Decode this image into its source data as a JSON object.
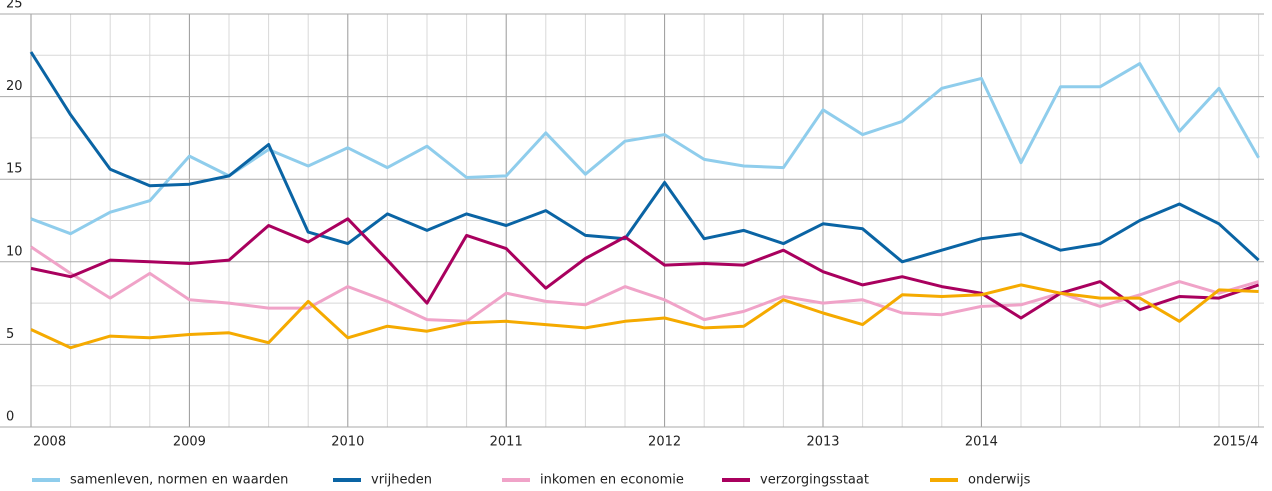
{
  "chart_data": {
    "type": "line",
    "categories": [
      "2008",
      null,
      null,
      null,
      "2009",
      null,
      null,
      null,
      "2010",
      null,
      null,
      null,
      "2011",
      null,
      null,
      null,
      "2012",
      null,
      null,
      null,
      "2013",
      null,
      null,
      null,
      "2014",
      null,
      null,
      null,
      null,
      null,
      null,
      "2015/4"
    ],
    "ylim": [
      0,
      25
    ],
    "yticks": [
      0,
      5,
      10,
      15,
      20,
      25
    ],
    "minor_grid": [
      2.5,
      7.5,
      12.5,
      17.5,
      22.5
    ],
    "grid": true,
    "legend": "bottom",
    "series": [
      {
        "name": "samenleven, normen en waarden",
        "color": "#8fcdec",
        "values": [
          12.6,
          11.7,
          13.0,
          13.7,
          16.4,
          15.2,
          16.8,
          15.8,
          16.9,
          15.7,
          17.0,
          15.1,
          15.2,
          17.8,
          15.3,
          17.3,
          17.7,
          16.2,
          15.8,
          15.7,
          19.2,
          17.7,
          18.5,
          20.5,
          21.1,
          16.0,
          20.6,
          20.6,
          22.0,
          17.9,
          20.5,
          16.3
        ]
      },
      {
        "name": "vrijheden",
        "color": "#0a64a4",
        "values": [
          22.7,
          18.9,
          15.6,
          14.6,
          14.7,
          15.2,
          17.1,
          11.8,
          11.1,
          12.9,
          11.9,
          12.9,
          12.2,
          13.1,
          11.6,
          11.4,
          14.8,
          11.4,
          11.9,
          11.1,
          12.3,
          12.0,
          10.0,
          10.7,
          11.4,
          11.7,
          10.7,
          11.1,
          12.5,
          13.5,
          12.3,
          10.1
        ]
      },
      {
        "name": "inkomen en economie",
        "color": "#f0a3c8",
        "values": [
          10.9,
          9.3,
          7.8,
          9.3,
          7.7,
          7.5,
          7.2,
          7.2,
          8.5,
          7.6,
          6.5,
          6.4,
          8.1,
          7.6,
          7.4,
          8.5,
          7.7,
          6.5,
          7.0,
          7.9,
          7.5,
          7.7,
          6.9,
          6.8,
          7.3,
          7.4,
          8.1,
          7.3,
          8.0,
          8.8,
          8.1,
          8.8
        ]
      },
      {
        "name": "verzorgingsstaat",
        "color": "#a9005e",
        "values": [
          9.6,
          9.1,
          10.1,
          10.0,
          9.9,
          10.1,
          12.2,
          11.2,
          12.6,
          10.1,
          7.5,
          11.6,
          10.8,
          8.4,
          10.2,
          11.5,
          9.8,
          9.9,
          9.8,
          10.7,
          9.4,
          8.6,
          9.1,
          8.5,
          8.1,
          6.6,
          8.1,
          8.8,
          7.1,
          7.9,
          7.8,
          8.6
        ]
      },
      {
        "name": "onderwijs",
        "color": "#f5aa00",
        "values": [
          5.9,
          4.8,
          5.5,
          5.4,
          5.6,
          5.7,
          5.1,
          7.6,
          5.4,
          6.1,
          5.8,
          6.3,
          6.4,
          6.2,
          6.0,
          6.4,
          6.6,
          6.0,
          6.1,
          7.7,
          6.9,
          6.2,
          8.0,
          7.9,
          8.0,
          8.6,
          8.1,
          7.8,
          7.8,
          6.4,
          8.3,
          8.2
        ]
      }
    ]
  }
}
